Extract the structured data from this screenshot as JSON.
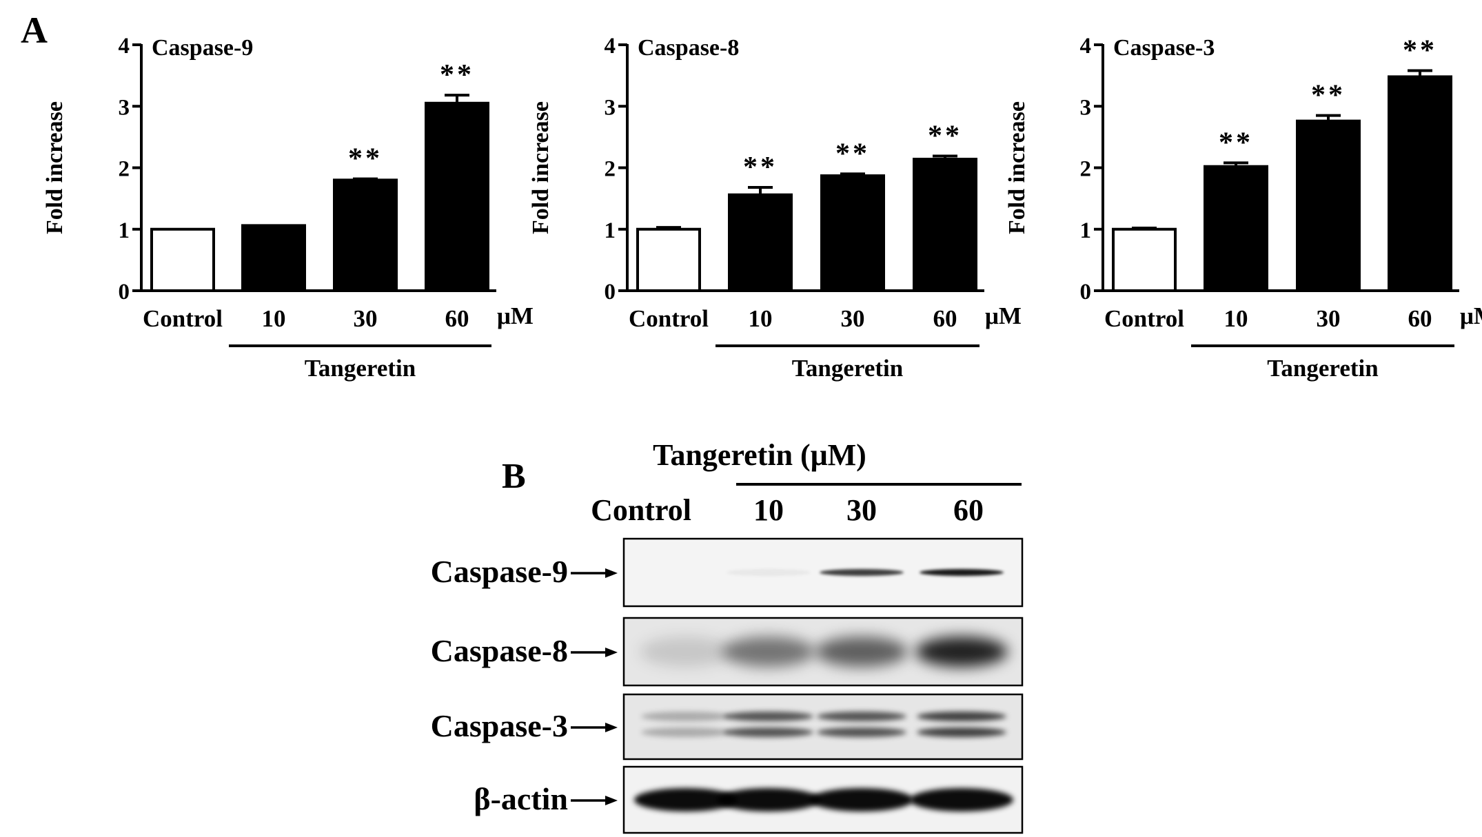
{
  "panel_labels": {
    "a": "A",
    "b": "B"
  },
  "chart_data": [
    {
      "type": "bar",
      "title": "Caspase-9",
      "ylabel": "Fold increase",
      "ylim": [
        0,
        4
      ],
      "yticks": [
        "0",
        "1",
        "2",
        "3",
        "4"
      ],
      "categories": [
        "Control",
        "10",
        "30",
        "60"
      ],
      "unit_label": "μM",
      "group_label": "Tangeretin",
      "values": [
        1.0,
        1.06,
        1.8,
        3.05
      ],
      "errors": [
        0.01,
        0.01,
        0.02,
        0.13
      ],
      "significance": [
        "",
        "",
        "**",
        "**"
      ],
      "bar_colors": [
        "#ffffff",
        "#000000",
        "#000000",
        "#000000"
      ]
    },
    {
      "type": "bar",
      "title": "Caspase-8",
      "ylabel": "Fold increase",
      "ylim": [
        0,
        4
      ],
      "yticks": [
        "0",
        "1",
        "2",
        "3",
        "4"
      ],
      "categories": [
        "Control",
        "10",
        "30",
        "60"
      ],
      "unit_label": "μM",
      "group_label": "Tangeretin",
      "values": [
        1.0,
        1.56,
        1.87,
        2.14
      ],
      "errors": [
        0.03,
        0.12,
        0.03,
        0.05
      ],
      "significance": [
        "",
        "**",
        "**",
        "**"
      ],
      "bar_colors": [
        "#ffffff",
        "#000000",
        "#000000",
        "#000000"
      ]
    },
    {
      "type": "bar",
      "title": "Caspase-3",
      "ylabel": "Fold increase",
      "ylim": [
        0,
        4
      ],
      "yticks": [
        "0",
        "1",
        "2",
        "3",
        "4"
      ],
      "categories": [
        "Control",
        "10",
        "30",
        "60"
      ],
      "unit_label": "μM",
      "group_label": "Tangeretin",
      "values": [
        1.0,
        2.02,
        2.76,
        3.48
      ],
      "errors": [
        0.02,
        0.06,
        0.09,
        0.1
      ],
      "significance": [
        "",
        "**",
        "**",
        "**"
      ],
      "bar_colors": [
        "#ffffff",
        "#000000",
        "#000000",
        "#000000"
      ]
    }
  ],
  "blot": {
    "header": "Tangeretin (μM)",
    "lanes": [
      "Control",
      "10",
      "30",
      "60"
    ],
    "rows": [
      {
        "label": "Caspase-9",
        "intensity": [
          0.0,
          0.05,
          0.75,
          0.9
        ]
      },
      {
        "label": "Caspase-8",
        "intensity": [
          0.15,
          0.55,
          0.65,
          0.95
        ]
      },
      {
        "label": "Caspase-3",
        "intensity": [
          0.3,
          0.75,
          0.75,
          0.85
        ]
      },
      {
        "label": "β-actin",
        "intensity": [
          1.0,
          1.0,
          1.0,
          1.0
        ]
      }
    ]
  }
}
